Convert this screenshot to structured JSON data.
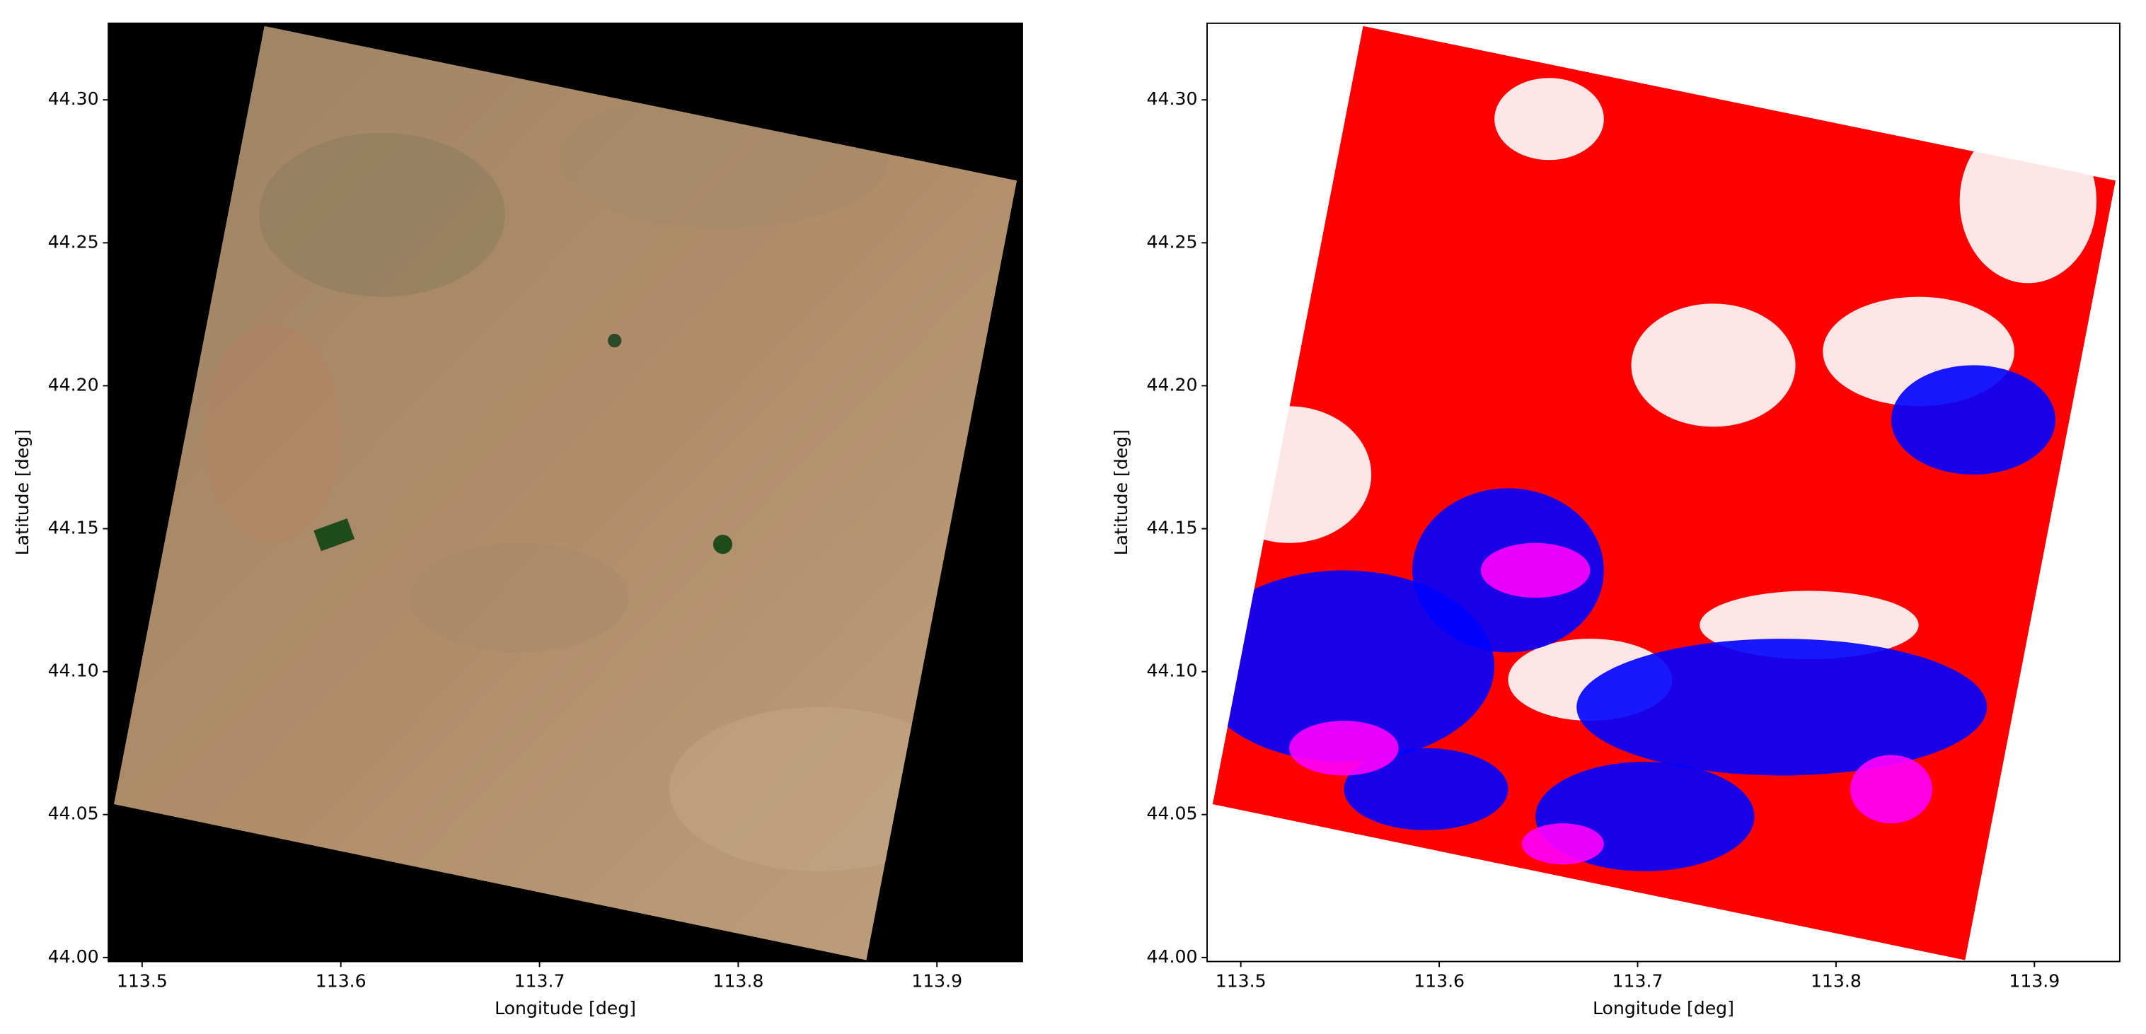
{
  "chart_data": [
    {
      "type": "image",
      "xlabel": "Longitude [deg]",
      "ylabel": "Latitude [deg]",
      "xlim": [
        113.483,
        113.943
      ],
      "ylim": [
        43.9986,
        44.3268
      ],
      "xticks": [
        113.5,
        113.6,
        113.7,
        113.8,
        113.9
      ],
      "yticks": [
        {
          "value": 44.0,
          "label": "44.00"
        },
        {
          "value": 44.05,
          "label": "44.05"
        },
        {
          "value": 44.1,
          "label": "44.10"
        },
        {
          "value": 44.15,
          "label": "44.15"
        },
        {
          "value": 44.2,
          "label": "44.20"
        },
        {
          "value": 44.25,
          "label": "44.25"
        },
        {
          "value": 44.3,
          "label": "44.30"
        }
      ]
    },
    {
      "type": "image",
      "xlabel": "Longitude [deg]",
      "ylabel": "Latitude [deg]",
      "xlim": [
        113.483,
        113.943
      ],
      "ylim": [
        43.9986,
        44.3268
      ],
      "xticks": [
        113.5,
        113.6,
        113.7,
        113.8,
        113.9
      ],
      "yticks": [
        {
          "value": 44.0,
          "label": "44.00"
        },
        {
          "value": 44.05,
          "label": "44.05"
        },
        {
          "value": 44.1,
          "label": "44.10"
        },
        {
          "value": 44.15,
          "label": "44.15"
        },
        {
          "value": 44.2,
          "label": "44.20"
        },
        {
          "value": 44.25,
          "label": "44.25"
        },
        {
          "value": 44.3,
          "label": "44.30"
        }
      ]
    }
  ]
}
